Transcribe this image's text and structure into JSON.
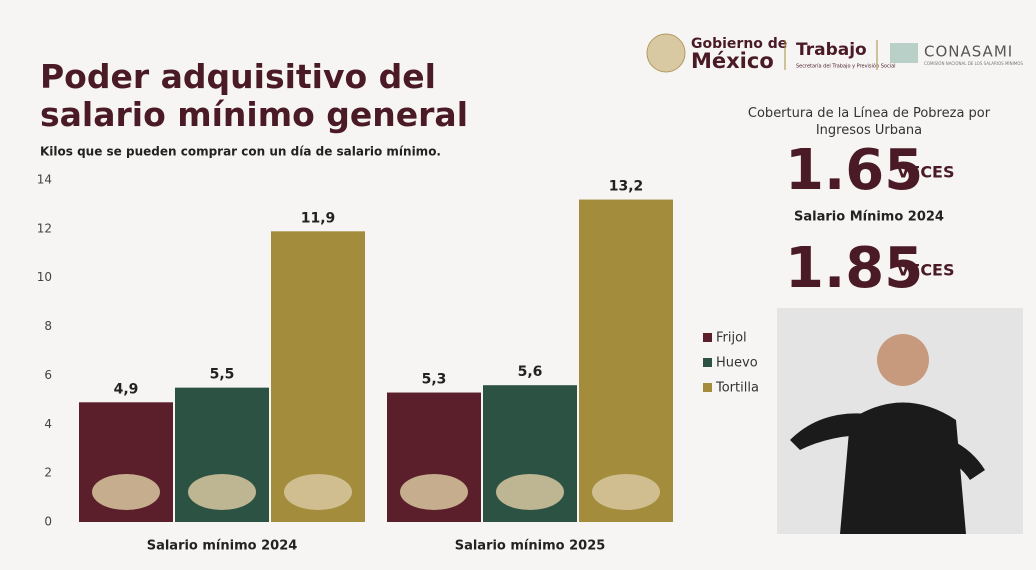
{
  "header": {
    "gobierno_1": "Gobierno de",
    "gobierno_2": "México",
    "trabajo": "Trabajo",
    "trabajo_sub": "Secretaría del Trabajo y Previsión Social",
    "conasami": "CONASAMI",
    "conasami_sub": "COMISIÓN NACIONAL DE LOS SALARIOS MÍNIMOS"
  },
  "chart_data": {
    "type": "bar",
    "title": "Poder adquisitivo del salario mínimo general",
    "subtitle": "Kilos que se pueden comprar con un día de salario mínimo.",
    "categories": [
      "Salario mínimo 2024",
      "Salario mínimo 2025"
    ],
    "series": [
      {
        "name": "Frijol",
        "color": "#5b1e2b",
        "values": [
          4.9,
          5.3
        ],
        "value_labels": [
          "4,9",
          "5,3"
        ]
      },
      {
        "name": "Huevo",
        "color": "#2c5243",
        "values": [
          5.5,
          5.6
        ],
        "value_labels": [
          "5,5",
          "5,6"
        ]
      },
      {
        "name": "Tortilla",
        "color": "#a38d3c",
        "values": [
          11.9,
          13.2
        ],
        "value_labels": [
          "11,9",
          "13,2"
        ]
      }
    ],
    "ylim": [
      0,
      14
    ],
    "yticks": [
      0,
      2,
      4,
      6,
      8,
      10,
      12,
      14
    ],
    "grid": false,
    "legend": "right"
  },
  "panel": {
    "heading": "Cobertura de la Línea de Pobreza por Ingresos Urbana",
    "value_2024": "1.65",
    "unit_2024": "VECES",
    "label_2024": "Salario Mínimo 2024",
    "value_2025": "1.85",
    "unit_2025": "VECES"
  }
}
